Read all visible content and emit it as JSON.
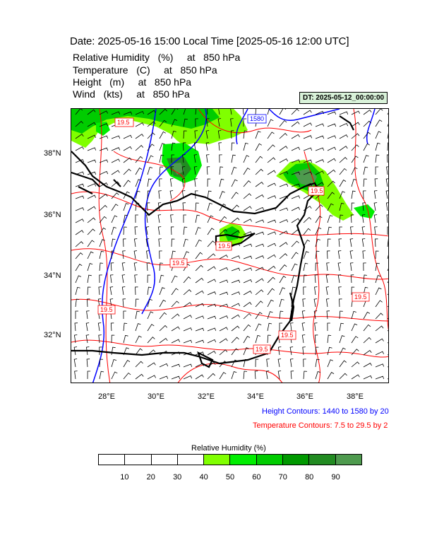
{
  "title": "Date: 2025-05-16  15:00 Local Time [2025-05-16  12:00 UTC]",
  "variables": [
    "Relative Humidity   (%)     at   850 hPa",
    "Temperature   (C)     at   850 hPa",
    "Height   (m)     at   850 hPa",
    "Wind   (kts)     at   850 hPa"
  ],
  "dt_label": "DT: 2025-05-12_00:00:00",
  "map": {
    "lon_labels": [
      "28°E",
      "30°E",
      "32°E",
      "34°E",
      "36°E",
      "38°E"
    ],
    "lat_labels": [
      "38°N",
      "36°N",
      "34°N",
      "32°N"
    ],
    "lon_range": [
      26.7,
      39.4
    ],
    "lat_range": [
      30.4,
      39.6
    ],
    "contour_labels": [
      "19.5",
      "19.5",
      "1580",
      "19.5",
      "19.5",
      "19.5",
      "19.5",
      "19.5",
      "19.5",
      "19.5"
    ]
  },
  "height_contours": "Height Contours: 1440 to 1580 by 20",
  "temperature_contours": "Temperature Contours: 7.5 to 29.5 by 2",
  "colorbar": {
    "title": "Relative Humidity  (%)",
    "labels": [
      "10",
      "20",
      "30",
      "40",
      "50",
      "60",
      "70",
      "80",
      "90"
    ],
    "colors": [
      "#ffffff",
      "#ffffff",
      "#ffffff",
      "#ffffff",
      "#80ff00",
      "#00ee00",
      "#00cc00",
      "#009900",
      "#228b22",
      "#4e9a4e"
    ]
  },
  "colors": {
    "land": "#000000",
    "height_contour": "#0000ff",
    "temperature_contour": "#ff0000",
    "wind_barb": "#000000"
  }
}
